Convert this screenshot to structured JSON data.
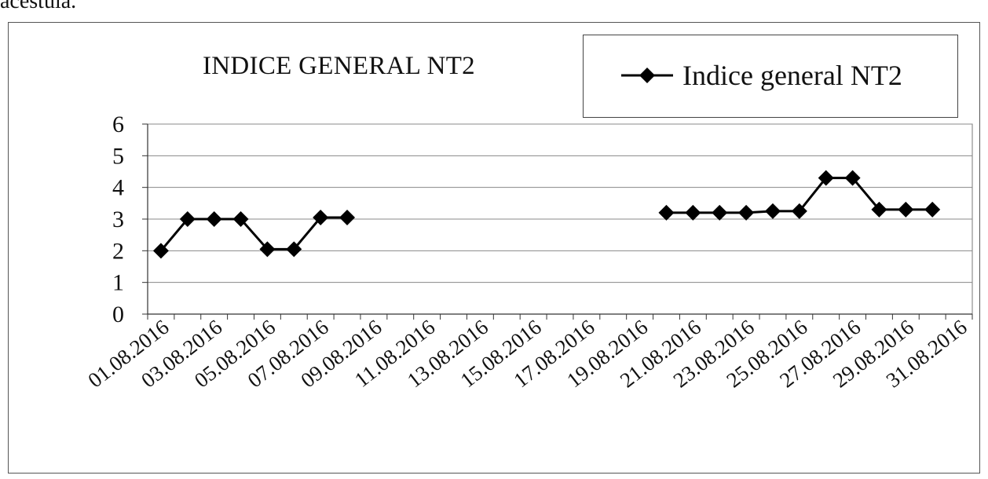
{
  "page": {
    "top_text": "acestuia."
  },
  "chart_data": {
    "type": "line",
    "title": "INDICE GENERAL NT2",
    "xlabel": "",
    "ylabel": "",
    "ylim": [
      0,
      6
    ],
    "yticks": [
      0,
      1,
      2,
      3,
      4,
      5,
      6
    ],
    "grid": true,
    "legend_position": "top-right",
    "x_tick_labels": [
      "01.08.2016",
      "03.08.2016",
      "05.08.2016",
      "07.08.2016",
      "09.08.2016",
      "11.08.2016",
      "13.08.2016",
      "15.08.2016",
      "17.08.2016",
      "19.08.2016",
      "21.08.2016",
      "23.08.2016",
      "25.08.2016",
      "27.08.2016",
      "29.08.2016",
      "31.08.2016"
    ],
    "categories": [
      "01.08.2016",
      "02.08.2016",
      "03.08.2016",
      "04.08.2016",
      "05.08.2016",
      "06.08.2016",
      "07.08.2016",
      "08.08.2016",
      "09.08.2016",
      "10.08.2016",
      "11.08.2016",
      "12.08.2016",
      "13.08.2016",
      "14.08.2016",
      "15.08.2016",
      "16.08.2016",
      "17.08.2016",
      "18.08.2016",
      "19.08.2016",
      "20.08.2016",
      "21.08.2016",
      "22.08.2016",
      "23.08.2016",
      "24.08.2016",
      "25.08.2016",
      "26.08.2016",
      "27.08.2016",
      "28.08.2016",
      "29.08.2016",
      "30.08.2016",
      "31.08.2016"
    ],
    "series": [
      {
        "name": "Indice general NT2",
        "color": "#000000",
        "marker": "diamond",
        "values": [
          2.0,
          3.0,
          3.0,
          3.0,
          2.05,
          2.05,
          3.05,
          3.05,
          null,
          null,
          null,
          null,
          null,
          null,
          null,
          null,
          null,
          null,
          null,
          3.2,
          3.2,
          3.2,
          3.2,
          3.25,
          3.25,
          4.3,
          4.3,
          3.3,
          3.3,
          3.3,
          null
        ]
      }
    ]
  }
}
